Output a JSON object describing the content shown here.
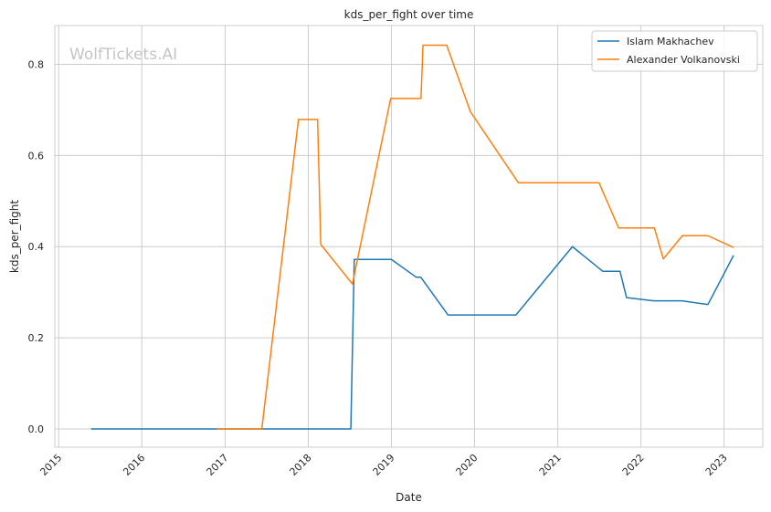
{
  "chart_data": {
    "type": "line",
    "title": "kds_per_fight over time",
    "xlabel": "Date",
    "ylabel": "kds_per_fight",
    "watermark": "WolfTickets.AI",
    "x_ticks": [
      "2015",
      "2016",
      "2017",
      "2018",
      "2019",
      "2020",
      "2021",
      "2022",
      "2023"
    ],
    "y_ticks": [
      "0.0",
      "0.2",
      "0.4",
      "0.6",
      "0.8"
    ],
    "xlim": [
      "2014-12-15",
      "2023-06-20"
    ],
    "ylim": [
      -0.04,
      0.885
    ],
    "grid": true,
    "legend_position": "top-right",
    "series": [
      {
        "name": "Islam Makhachev",
        "color": "#1f77b4",
        "points": [
          [
            "2015-05-23",
            0.0
          ],
          [
            "2016-01-01",
            0.0
          ],
          [
            "2017-01-01",
            0.0
          ],
          [
            "2018-01-01",
            0.0
          ],
          [
            "2018-07-07",
            0.0
          ],
          [
            "2018-07-22",
            0.372
          ],
          [
            "2019-01-01",
            0.372
          ],
          [
            "2019-04-20",
            0.333
          ],
          [
            "2019-05-10",
            0.333
          ],
          [
            "2019-09-07",
            0.25
          ],
          [
            "2020-07-01",
            0.25
          ],
          [
            "2021-03-06",
            0.4
          ],
          [
            "2021-07-17",
            0.346
          ],
          [
            "2021-10-01",
            0.346
          ],
          [
            "2021-10-30",
            0.288
          ],
          [
            "2022-02-26",
            0.281
          ],
          [
            "2022-07-01",
            0.281
          ],
          [
            "2022-10-22",
            0.273
          ],
          [
            "2023-02-12",
            0.381
          ]
        ]
      },
      {
        "name": "Alexander Volkanovski",
        "color": "#ff7f0e",
        "points": [
          [
            "2016-11-26",
            0.0
          ],
          [
            "2017-06-11",
            0.0
          ],
          [
            "2017-11-19",
            0.679
          ],
          [
            "2018-02-11",
            0.679
          ],
          [
            "2018-02-25",
            0.405
          ],
          [
            "2018-07-14",
            0.318
          ],
          [
            "2018-12-29",
            0.725
          ],
          [
            "2019-05-11",
            0.725
          ],
          [
            "2019-05-20",
            0.842
          ],
          [
            "2019-09-01",
            0.842
          ],
          [
            "2019-12-14",
            0.696
          ],
          [
            "2020-07-12",
            0.54
          ],
          [
            "2021-07-01",
            0.54
          ],
          [
            "2021-09-25",
            0.441
          ],
          [
            "2022-03-01",
            0.441
          ],
          [
            "2022-04-09",
            0.373
          ],
          [
            "2022-07-02",
            0.424
          ],
          [
            "2022-10-22",
            0.424
          ],
          [
            "2023-02-12",
            0.398
          ]
        ]
      }
    ]
  }
}
